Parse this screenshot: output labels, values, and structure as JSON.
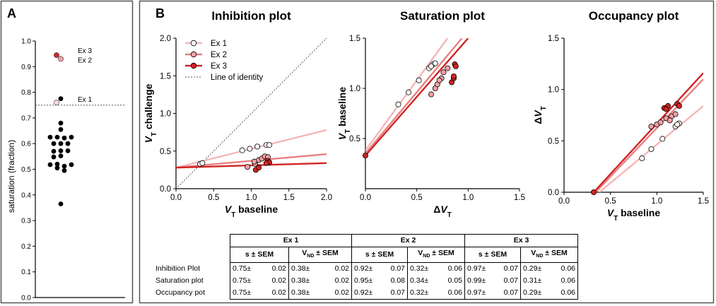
{
  "colors": {
    "ex1": "#f4b6b6",
    "ex2": "#e87f82",
    "ex3": "#d22424",
    "black": "#000000",
    "grey": "#555555"
  },
  "panels": {
    "a_label": "A",
    "b_label": "B"
  },
  "legend": [
    {
      "name": "Ex 1",
      "color": "#f4b6b6",
      "fill": "#ffffff"
    },
    {
      "name": "Ex 2",
      "color": "#e87f82",
      "fill": "#f2a2a4"
    },
    {
      "name": "Ex 3",
      "color": "#d22424",
      "fill": "#d22424"
    },
    {
      "name": "Line of identity",
      "color": "#555555",
      "dotted": true
    }
  ],
  "chart_data": [
    {
      "type": "scatter",
      "panel": "A",
      "title": "",
      "ylabel": "saturation (fraction)",
      "ylim": [
        0.0,
        1.0
      ],
      "yticks": [
        "0.0",
        "0.1",
        "0.2",
        "0.3",
        "0.4",
        "0.5",
        "0.6",
        "0.7",
        "0.8",
        "0.9",
        "1.0"
      ],
      "threshold": 0.75,
      "highlight": [
        {
          "name": "Ex 3",
          "value": 0.945,
          "label": "Ex 3"
        },
        {
          "name": "Ex 2",
          "value": 0.93,
          "label": "Ex 2"
        },
        {
          "name": "Ex 1",
          "value": 0.76,
          "label": "Ex 1"
        }
      ],
      "points": [
        {
          "offset": 0.0,
          "value": 0.775
        },
        {
          "offset": 0.0,
          "value": 0.68
        },
        {
          "offset": 0.0,
          "value": 0.655
        },
        {
          "offset": -1.5,
          "value": 0.625
        },
        {
          "offset": -0.5,
          "value": 0.625
        },
        {
          "offset": 0.5,
          "value": 0.622
        },
        {
          "offset": 1.5,
          "value": 0.625
        },
        {
          "offset": -1.0,
          "value": 0.6
        },
        {
          "offset": 0.0,
          "value": 0.6
        },
        {
          "offset": 1.0,
          "value": 0.6
        },
        {
          "offset": -1.0,
          "value": 0.57
        },
        {
          "offset": 0.0,
          "value": 0.572
        },
        {
          "offset": 1.0,
          "value": 0.572
        },
        {
          "offset": -1.0,
          "value": 0.548
        },
        {
          "offset": 0.0,
          "value": 0.552
        },
        {
          "offset": -1.5,
          "value": 0.518
        },
        {
          "offset": -0.5,
          "value": 0.52
        },
        {
          "offset": 0.5,
          "value": 0.512
        },
        {
          "offset": 1.5,
          "value": 0.518
        },
        {
          "offset": -0.5,
          "value": 0.505
        },
        {
          "offset": 0.5,
          "value": 0.495
        },
        {
          "offset": 0.0,
          "value": 0.365
        }
      ]
    },
    {
      "type": "scatter",
      "panel": "B1",
      "title": "Inhibition plot",
      "xlabel": "V_T baseline",
      "ylabel": "V_T challenge",
      "xlim": [
        0,
        2.0
      ],
      "ylim": [
        0,
        2.0
      ],
      "xticks": [
        "0.0",
        "0.5",
        "1.0",
        "1.5",
        "2.0"
      ],
      "yticks": [
        "0.0",
        "0.5",
        "1.0",
        "1.5",
        "2.0"
      ],
      "identity_line": true,
      "series": [
        {
          "name": "Ex 1",
          "line": {
            "x0": 0,
            "y0": 0.28,
            "x1": 2.0,
            "y1": 0.78
          },
          "points": [
            [
              0.32,
              0.33
            ],
            [
              0.35,
              0.34
            ],
            [
              0.88,
              0.51
            ],
            [
              0.98,
              0.53
            ],
            [
              1.08,
              0.56
            ],
            [
              1.2,
              0.58
            ],
            [
              1.24,
              0.58
            ]
          ]
        },
        {
          "name": "Ex 2",
          "line": {
            "x0": 0,
            "y0": 0.28,
            "x1": 2.0,
            "y1": 0.46
          },
          "points": [
            [
              0.95,
              0.29
            ],
            [
              1.05,
              0.33
            ],
            [
              1.1,
              0.38
            ],
            [
              1.14,
              0.4
            ],
            [
              1.18,
              0.43
            ],
            [
              1.22,
              0.42
            ],
            [
              1.04,
              0.36
            ]
          ]
        },
        {
          "name": "Ex 3",
          "line": {
            "x0": 0,
            "y0": 0.28,
            "x1": 2.0,
            "y1": 0.34
          },
          "points": [
            [
              1.06,
              0.25
            ],
            [
              1.1,
              0.28
            ],
            [
              1.22,
              0.37
            ],
            [
              1.24,
              0.35
            ],
            [
              1.2,
              0.34
            ]
          ]
        }
      ]
    },
    {
      "type": "scatter",
      "panel": "B2",
      "title": "Saturation plot",
      "xlabel": "ΔV_T",
      "ylabel": "V_T baseline",
      "xlim": [
        0,
        1.5
      ],
      "ylim": [
        0,
        1.5
      ],
      "xticks": [
        "0.0",
        "0.5",
        "1.0",
        "1.5"
      ],
      "yticks": [
        "0.5",
        "1.0",
        "1.5"
      ],
      "series": [
        {
          "name": "Ex 1",
          "line": {
            "x0": 0,
            "y0": 0.38,
            "x1": 0.8,
            "y1": 1.5
          },
          "points": [
            [
              0.32,
              0.84
            ],
            [
              0.42,
              0.96
            ],
            [
              0.52,
              1.08
            ],
            [
              0.62,
              1.2
            ],
            [
              0.66,
              1.24
            ],
            [
              0.68,
              1.25
            ],
            [
              0.64,
              1.22
            ]
          ]
        },
        {
          "name": "Ex 2",
          "line": {
            "x0": 0,
            "y0": 0.35,
            "x1": 0.94,
            "y1": 1.5
          },
          "points": [
            [
              0.64,
              0.94
            ],
            [
              0.68,
              1.0
            ],
            [
              0.7,
              1.04
            ],
            [
              0.74,
              1.1
            ],
            [
              0.76,
              1.16
            ],
            [
              0.8,
              1.2
            ],
            [
              0.72,
              1.08
            ]
          ]
        },
        {
          "name": "Ex 3",
          "line": {
            "x0": 0,
            "y0": 0.33,
            "x1": 1.0,
            "y1": 1.5
          },
          "points": [
            [
              0.0,
              0.33
            ],
            [
              0.84,
              1.06
            ],
            [
              0.86,
              1.1
            ],
            [
              0.87,
              1.24
            ],
            [
              0.88,
              1.22
            ],
            [
              0.86,
              1.12
            ]
          ]
        }
      ]
    },
    {
      "type": "scatter",
      "panel": "B3",
      "title": "Occupancy plot",
      "xlabel": "V_T baseline",
      "ylabel": "ΔV_T",
      "xlim": [
        0,
        1.5
      ],
      "ylim": [
        0,
        1.5
      ],
      "xticks": [
        "0.0",
        "0.5",
        "1.0",
        "1.5"
      ],
      "yticks": [
        "0.0",
        "0.5",
        "1.0",
        "1.5"
      ],
      "series": [
        {
          "name": "Ex 1",
          "line": {
            "x0": 0.38,
            "y0": 0,
            "x1": 1.5,
            "y1": 0.84
          },
          "points": [
            [
              0.84,
              0.33
            ],
            [
              0.94,
              0.42
            ],
            [
              1.06,
              0.52
            ],
            [
              1.2,
              0.64
            ],
            [
              1.24,
              0.67
            ],
            [
              1.22,
              0.66
            ]
          ]
        },
        {
          "name": "Ex 2",
          "line": {
            "x0": 0.34,
            "y0": 0,
            "x1": 1.5,
            "y1": 1.1
          },
          "points": [
            [
              0.94,
              0.64
            ],
            [
              1.0,
              0.66
            ],
            [
              1.04,
              0.68
            ],
            [
              1.1,
              0.72
            ],
            [
              1.16,
              0.74
            ],
            [
              1.2,
              0.76
            ],
            [
              1.14,
              0.7
            ]
          ]
        },
        {
          "name": "Ex 3",
          "line": {
            "x0": 0.32,
            "y0": 0,
            "x1": 1.5,
            "y1": 1.16
          },
          "points": [
            [
              0.32,
              0.0
            ],
            [
              1.08,
              0.82
            ],
            [
              1.12,
              0.84
            ],
            [
              1.22,
              0.86
            ],
            [
              1.24,
              0.84
            ],
            [
              1.1,
              0.81
            ]
          ]
        }
      ]
    }
  ],
  "table": {
    "groups": [
      "Ex 1",
      "Ex 2",
      "Ex 3"
    ],
    "subheaders": [
      "s ± SEM",
      "V",
      "ND",
      " ± SEM"
    ],
    "rows": [
      {
        "label": "Inhibition Plot",
        "cells": [
          [
            "0.75±",
            "0.02"
          ],
          [
            "0.38±",
            "0.02"
          ],
          [
            "0.92±",
            "0.07"
          ],
          [
            "0.32±",
            "0.06"
          ],
          [
            "0.97±",
            "0.07"
          ],
          [
            "0.29±",
            "0.06"
          ]
        ]
      },
      {
        "label": "Saturation plot",
        "cells": [
          [
            "0.75±",
            "0.02"
          ],
          [
            "0.38±",
            "0.02"
          ],
          [
            "0.95±",
            "0.08"
          ],
          [
            "0.34±",
            "0.05"
          ],
          [
            "0.99±",
            "0.07"
          ],
          [
            "0.31±",
            "0.06"
          ]
        ]
      },
      {
        "label": "Occupancy pot",
        "cells": [
          [
            "0.75±",
            "0.02"
          ],
          [
            "0.38±",
            "0.02"
          ],
          [
            "0.92±",
            "0.07"
          ],
          [
            "0.32±",
            "0.06"
          ],
          [
            "0.97±",
            "0.07"
          ],
          [
            "0.29±",
            "0.06"
          ]
        ]
      }
    ]
  }
}
